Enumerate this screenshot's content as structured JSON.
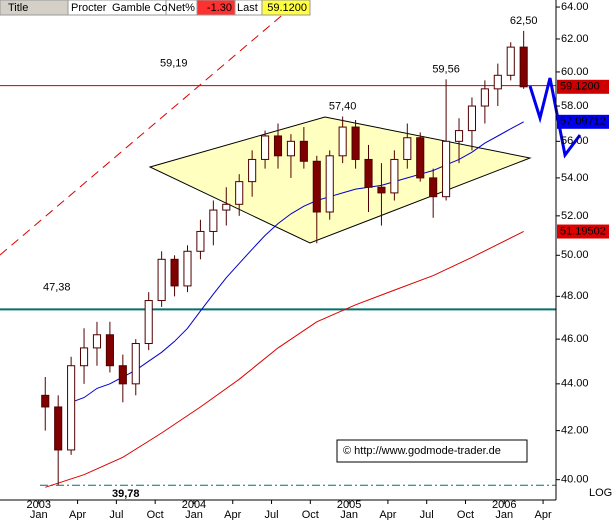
{
  "header": {
    "title": "Title",
    "name1": "Procter",
    "name2": "Gamble Co",
    "net_label": "Net%",
    "net_value": "-1.30",
    "last_label": "Last",
    "last_value": "59.1200"
  },
  "chart_data": {
    "type": "candlestick",
    "log_scale": true,
    "log_label": "LOG",
    "x": [
      "2003-01",
      "2003-02",
      "2003-03",
      "2003-04",
      "2003-05",
      "2003-06",
      "2003-07",
      "2003-08",
      "2003-09",
      "2003-10",
      "2003-11",
      "2003-12",
      "2004-01",
      "2004-02",
      "2004-03",
      "2004-04",
      "2004-05",
      "2004-06",
      "2004-07",
      "2004-08",
      "2004-09",
      "2004-10",
      "2004-11",
      "2004-12",
      "2005-01",
      "2005-02",
      "2005-03",
      "2005-04",
      "2005-05",
      "2005-06",
      "2005-07",
      "2005-08",
      "2005-09",
      "2005-10",
      "2005-11",
      "2005-12",
      "2006-01",
      "2006-02"
    ],
    "open": [
      43.5,
      43.0,
      41.2,
      44.8,
      45.6,
      46.2,
      44.8,
      44.0,
      45.8,
      47.8,
      49.8,
      48.5,
      50.2,
      51.2,
      52.3,
      52.6,
      53.8,
      55.0,
      56.3,
      55.2,
      56.0,
      54.9,
      52.2,
      55.2,
      56.8,
      55.0,
      53.5,
      53.2,
      55.0,
      56.2,
      54.0,
      53.0,
      56.0,
      56.6,
      58.0,
      59.0,
      59.8,
      61.5
    ],
    "high": [
      44.3,
      43.5,
      45.2,
      46.5,
      46.8,
      46.8,
      45.3,
      46.0,
      48.2,
      50.2,
      50.0,
      50.5,
      51.8,
      52.8,
      53.5,
      54.2,
      55.5,
      56.6,
      57.0,
      56.4,
      56.8,
      55.2,
      55.5,
      57.4,
      57.2,
      55.8,
      54.8,
      55.5,
      57.0,
      56.5,
      54.5,
      59.56,
      57.3,
      58.5,
      59.5,
      60.5,
      61.8,
      62.5
    ],
    "low": [
      42.0,
      39.78,
      41.0,
      44.0,
      44.8,
      44.5,
      43.2,
      43.5,
      45.5,
      47.5,
      48.0,
      48.2,
      49.8,
      50.5,
      51.5,
      52.0,
      53.0,
      54.5,
      54.5,
      54.0,
      54.5,
      50.6,
      51.8,
      54.8,
      54.5,
      52.2,
      51.5,
      52.8,
      54.5,
      53.8,
      51.9,
      52.8,
      54.8,
      55.5,
      57.0,
      58.0,
      59.5,
      59.0
    ],
    "close": [
      43.0,
      41.2,
      44.8,
      45.6,
      46.2,
      44.8,
      44.0,
      45.8,
      47.8,
      49.8,
      48.5,
      50.2,
      51.2,
      52.3,
      52.6,
      53.8,
      55.0,
      56.3,
      55.2,
      56.0,
      54.9,
      52.2,
      55.2,
      56.8,
      55.0,
      53.5,
      53.2,
      55.0,
      56.2,
      54.0,
      53.0,
      56.0,
      56.6,
      58.0,
      59.0,
      59.8,
      61.5,
      59.12
    ],
    "up_color": "#ffffff",
    "down_color": "#800000",
    "candle_edge": "#500000",
    "series": [
      {
        "color": "#0000cc",
        "x": [
          "2003-03",
          "2003-04",
          "2003-05",
          "2003-06",
          "2003-07",
          "2003-08",
          "2003-09",
          "2003-10",
          "2003-11",
          "2003-12",
          "2004-01",
          "2004-02",
          "2004-03",
          "2004-04",
          "2004-05",
          "2004-06",
          "2004-07",
          "2004-08",
          "2004-09",
          "2004-10",
          "2004-11",
          "2004-12",
          "2005-01",
          "2005-02",
          "2005-03",
          "2005-04",
          "2005-05",
          "2005-06",
          "2005-07",
          "2005-08",
          "2005-09",
          "2005-10",
          "2005-11",
          "2005-12",
          "2006-01",
          "2006-02"
        ],
        "values": [
          43.2,
          43.4,
          43.8,
          44.0,
          44.3,
          44.6,
          45.0,
          45.4,
          45.9,
          46.5,
          47.3,
          48.1,
          48.9,
          49.6,
          50.3,
          51.0,
          51.6,
          52.1,
          52.5,
          52.8,
          53.0,
          53.2,
          53.4,
          53.5,
          53.6,
          53.8,
          54.0,
          54.2,
          54.4,
          54.7,
          55.0,
          55.4,
          55.9,
          56.3,
          56.7,
          57.1
        ]
      },
      {
        "color": "#dd0000",
        "x": [
          "2003-01",
          "2003-04",
          "2003-07",
          "2003-10",
          "2004-01",
          "2004-04",
          "2004-07",
          "2004-10",
          "2005-01",
          "2005-04",
          "2005-07",
          "2005-10",
          "2006-02"
        ],
        "values": [
          39.7,
          40.2,
          40.9,
          41.9,
          43.0,
          44.2,
          45.6,
          46.8,
          47.6,
          48.3,
          49.0,
          49.9,
          51.2
        ]
      }
    ],
    "levels": [
      {
        "value": 59.19,
        "label": "59,19",
        "color": "#cc0000"
      },
      {
        "value": 47.38,
        "label": "47,38",
        "color": "#007070"
      },
      {
        "value": 39.78,
        "label": "39,78",
        "color": "#007070"
      }
    ],
    "annotations": [
      {
        "x": "2004-12",
        "value": 57.4,
        "label": "57,40"
      },
      {
        "x": "2005-08",
        "value": 59.56,
        "label": "59,56"
      },
      {
        "x": "2006-02",
        "value": 62.5,
        "label": "62,50"
      }
    ],
    "price_labels": [
      {
        "value": 59.12,
        "label": "59.1200",
        "color": "#cc0000"
      },
      {
        "value": 57.09712,
        "label": "57.09712",
        "color": "#0000ee"
      },
      {
        "value": 51.19502,
        "label": "51.19502",
        "color": "#dd0000"
      }
    ],
    "xlim": [
      "2002-10",
      "2006-05"
    ],
    "xticks": [
      {
        "value": "2003-01",
        "label": "Jan"
      },
      {
        "value": "2003-04",
        "label": "Apr"
      },
      {
        "value": "2003-07",
        "label": "Jul"
      },
      {
        "value": "2003-10",
        "label": "Oct"
      },
      {
        "value": "2004-01",
        "label": "Jan"
      },
      {
        "value": "2004-04",
        "label": "Apr"
      },
      {
        "value": "2004-07",
        "label": "Jul"
      },
      {
        "value": "2004-10",
        "label": "Oct"
      },
      {
        "value": "2005-01",
        "label": "Jan"
      },
      {
        "value": "2005-04",
        "label": "Apr"
      },
      {
        "value": "2005-07",
        "label": "Jul"
      },
      {
        "value": "2005-10",
        "label": "Oct"
      },
      {
        "value": "2006-01",
        "label": "Jan"
      },
      {
        "value": "2006-04",
        "label": "Apr"
      }
    ],
    "year_ticks": [
      {
        "value": "2003-01",
        "label": "2003"
      },
      {
        "value": "2004-01",
        "label": "2004"
      },
      {
        "value": "2005-01",
        "label": "2005"
      },
      {
        "value": "2006-01",
        "label": "2006"
      }
    ],
    "ylim": [
      39.2,
      64.45
    ],
    "yticks": [
      {
        "value": 40,
        "label": "40.00"
      },
      {
        "value": 42,
        "label": "42.00"
      },
      {
        "value": 44,
        "label": "44.00"
      },
      {
        "value": 46,
        "label": "46.00"
      },
      {
        "value": 48,
        "label": "48.00"
      },
      {
        "value": 50,
        "label": "50.00"
      },
      {
        "value": 52,
        "label": "52.00"
      },
      {
        "value": 54,
        "label": "54.00"
      },
      {
        "value": 56,
        "label": "56.00"
      },
      {
        "value": 58,
        "label": "58.00"
      },
      {
        "value": 60,
        "label": "60.00"
      },
      {
        "value": 62,
        "label": "62.00"
      },
      {
        "value": 64,
        "label": "64.00"
      }
    ],
    "copyright": "© http://www.godmode-trader.de"
  }
}
